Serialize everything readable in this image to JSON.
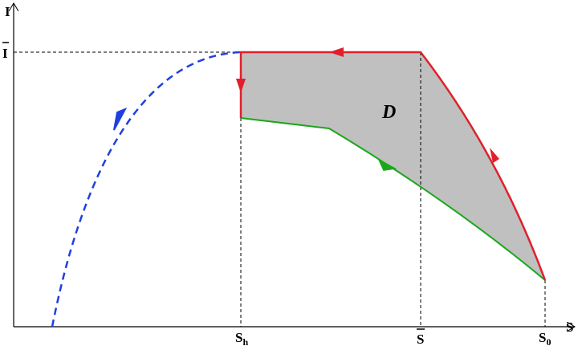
{
  "labels": {
    "y_axis": "I",
    "x_axis": "S",
    "i_bar": "I",
    "s_h": {
      "base": "S",
      "sub": "h"
    },
    "s_bar": "S",
    "s_0": {
      "base": "S",
      "sub": "0"
    },
    "region": "D"
  }
}
